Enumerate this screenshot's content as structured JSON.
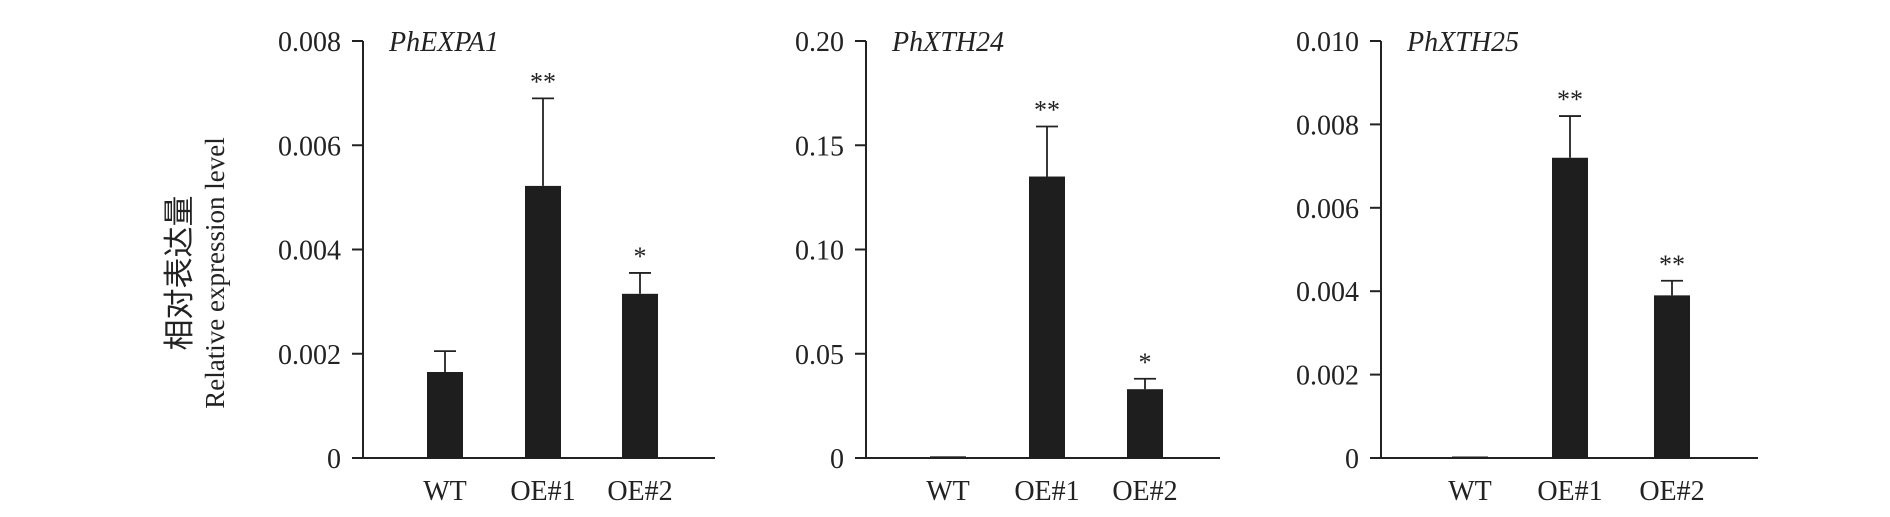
{
  "ylabel_cn": "相对表达量",
  "ylabel_en": "Relative expression level",
  "chart_data": [
    {
      "type": "bar",
      "title": "PhEXPA1",
      "categories": [
        "WT",
        "OE#1",
        "OE#2"
      ],
      "values": [
        0.00165,
        0.00522,
        0.00315
      ],
      "errors": [
        0.0004,
        0.00168,
        0.0004
      ],
      "significance": [
        "",
        "**",
        "*"
      ],
      "ylim": [
        0,
        0.008
      ],
      "ticks": [
        "0",
        "0.002",
        "0.004",
        "0.006",
        "0.008"
      ],
      "tick_values": [
        0,
        0.002,
        0.004,
        0.006,
        0.008
      ]
    },
    {
      "type": "bar",
      "title": "PhXTH24",
      "categories": [
        "WT",
        "OE#1",
        "OE#2"
      ],
      "values": [
        0.0008,
        0.135,
        0.033
      ],
      "errors": [
        0.0003,
        0.024,
        0.005
      ],
      "significance": [
        "",
        "**",
        "*"
      ],
      "ylim": [
        0,
        0.2
      ],
      "ticks": [
        "0",
        "0.05",
        "0.10",
        "0.15",
        "0.20"
      ],
      "tick_values": [
        0,
        0.05,
        0.1,
        0.15,
        0.2
      ]
    },
    {
      "type": "bar",
      "title": "PhXTH25",
      "categories": [
        "WT",
        "OE#1",
        "OE#2"
      ],
      "values": [
        2e-05,
        0.0072,
        0.0039
      ],
      "errors": [
        1e-05,
        0.001,
        0.00035
      ],
      "significance": [
        "",
        "**",
        "**"
      ],
      "ylim": [
        0,
        0.01
      ],
      "ticks": [
        "0",
        "0.002",
        "0.004",
        "0.006",
        "0.008",
        "0.010"
      ],
      "tick_values": [
        0,
        0.002,
        0.004,
        0.006,
        0.008,
        0.01
      ]
    }
  ]
}
